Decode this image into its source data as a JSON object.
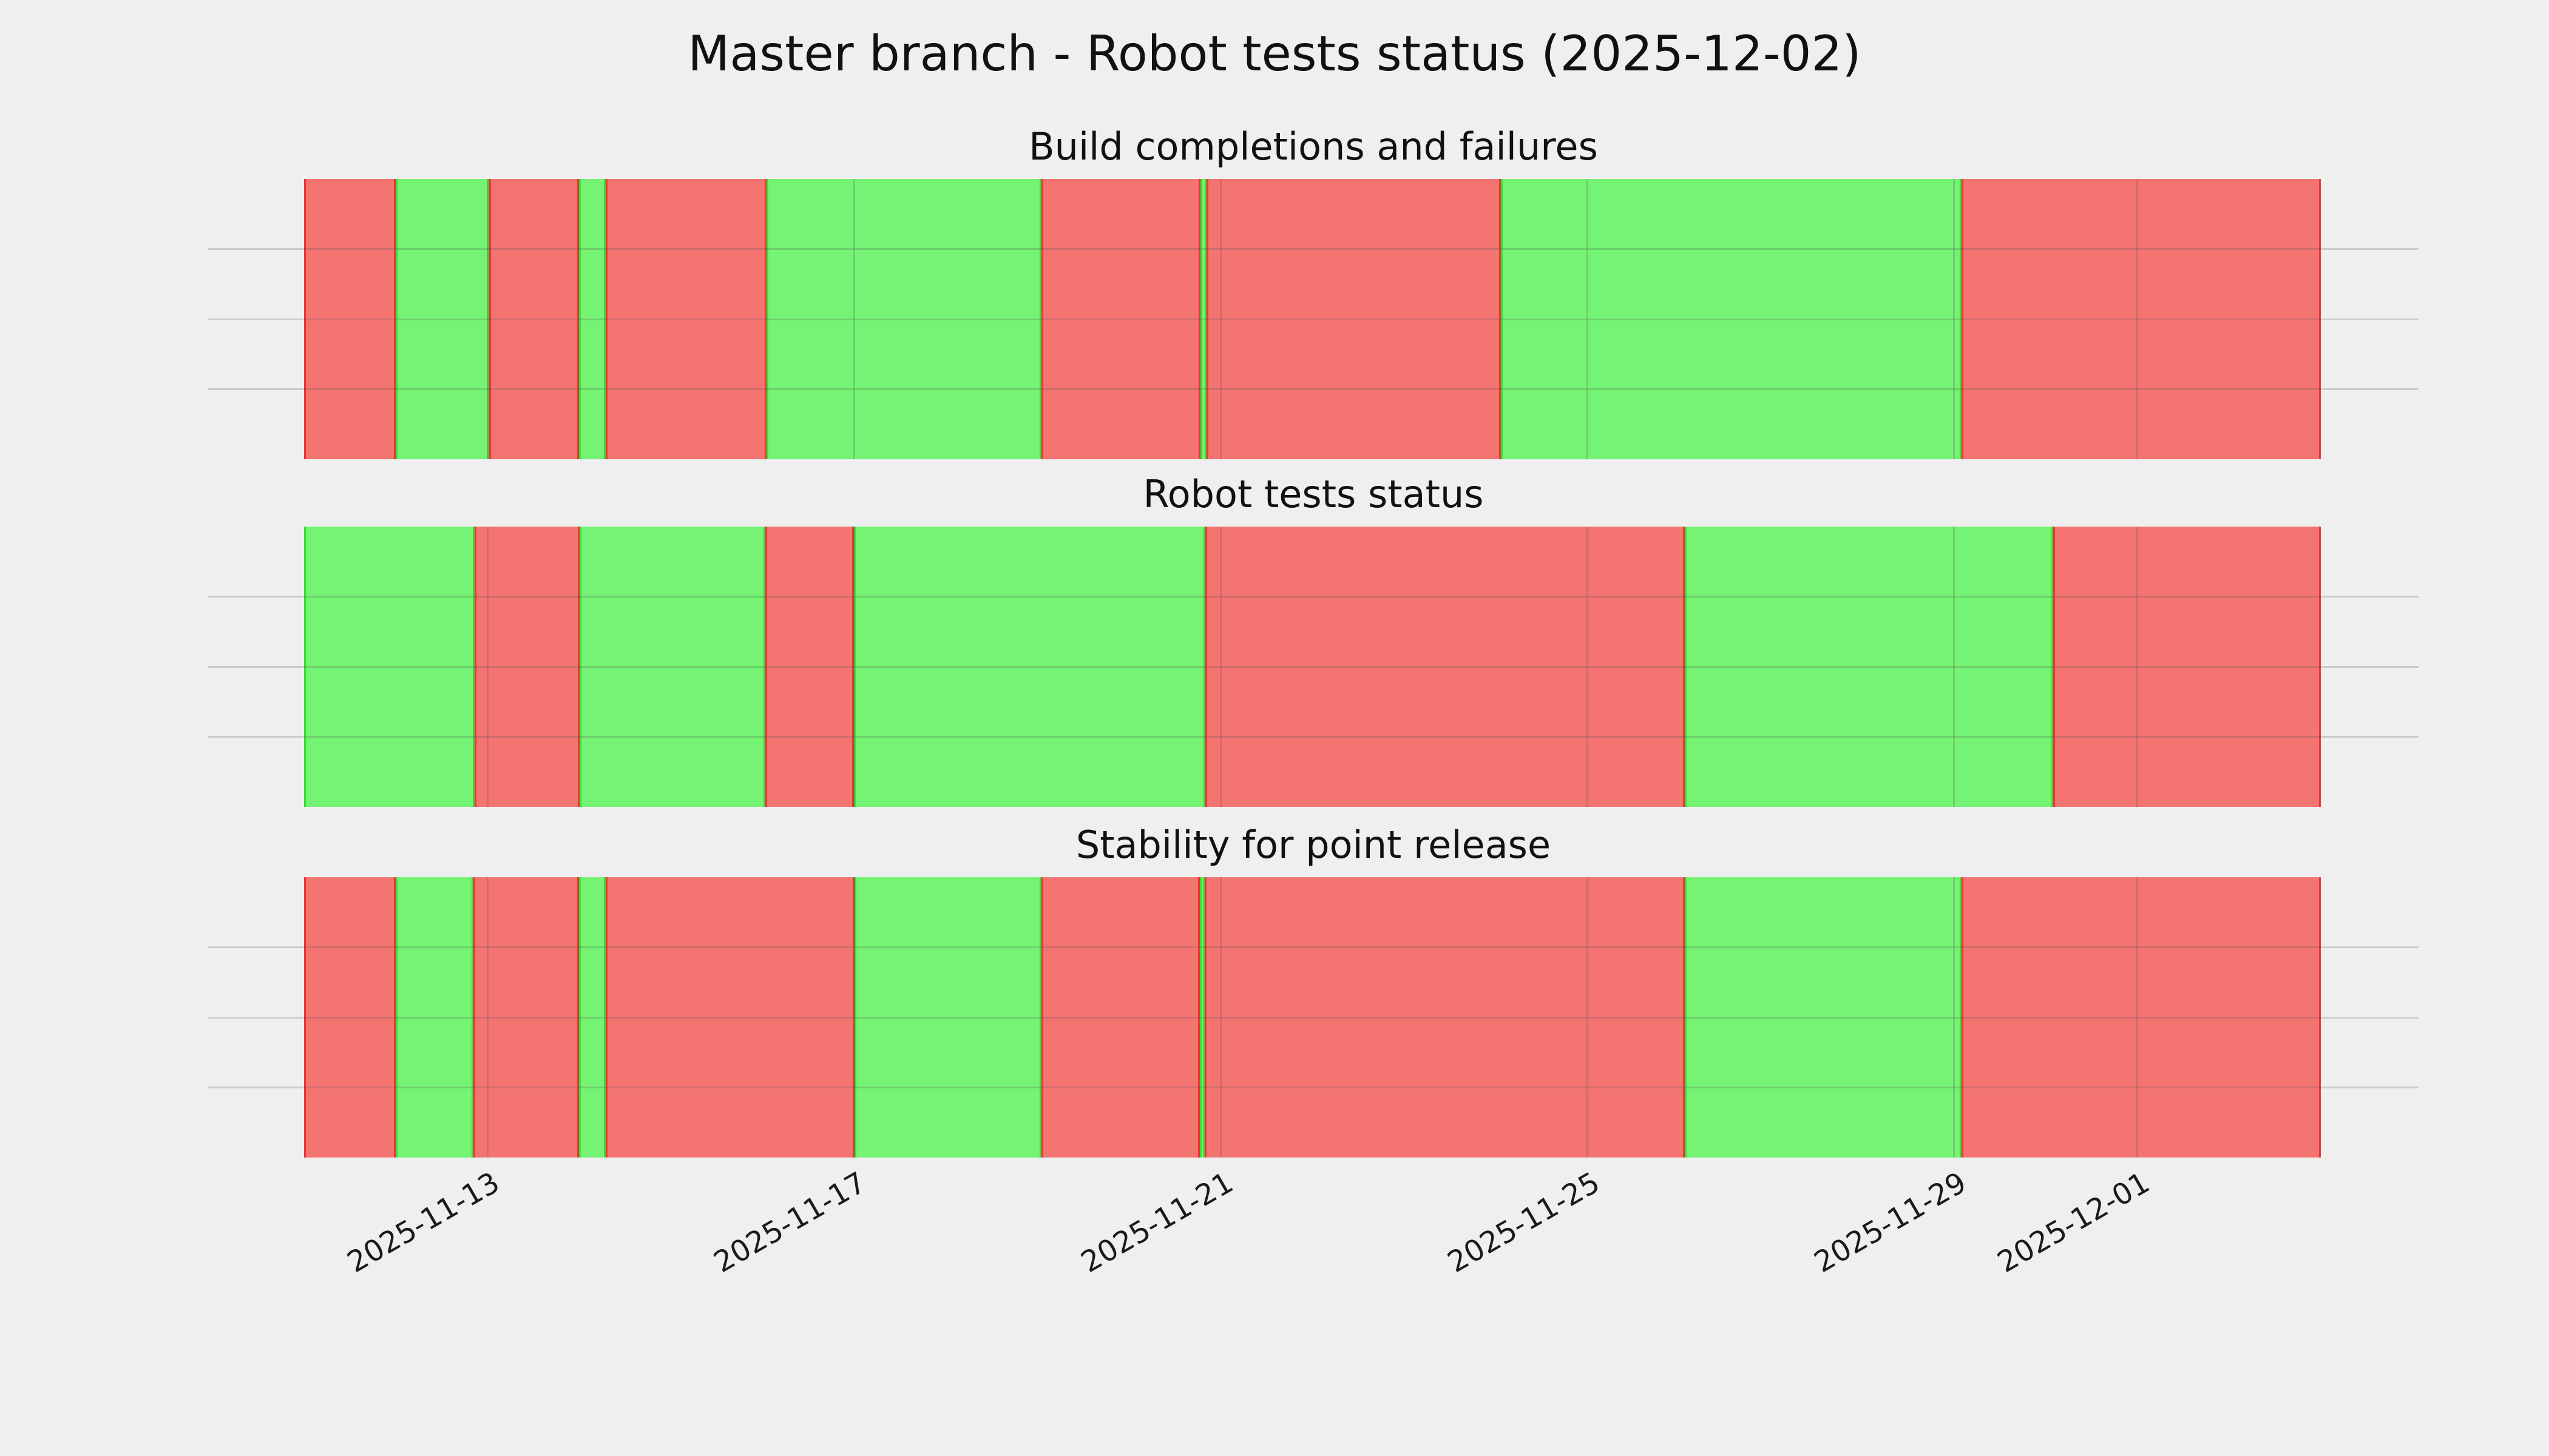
{
  "figure": {
    "title": "Master branch - Robot tests status (2025-12-02)",
    "background": "#efefef"
  },
  "chart_data": {
    "type": "status_timeline",
    "title": "Master branch - Robot tests status (2025-12-02)",
    "x_start": "2025-11-11T00:00:00",
    "x_end": "2025-12-03T00:00:00",
    "x_tick_labels": [
      "2025-11-13",
      "2025-11-17",
      "2025-11-21",
      "2025-11-25",
      "2025-11-29",
      "2025-12-01"
    ],
    "x_tick_dates": [
      "2025-11-13T00:00:00",
      "2025-11-17T00:00:00",
      "2025-11-21T00:00:00",
      "2025-11-25T00:00:00",
      "2025-11-29T00:00:00",
      "2025-12-01T00:00:00"
    ],
    "grid_on": true,
    "legend": null,
    "colors": {
      "pass": "#75f374",
      "fail": "#f47472",
      "pass_edge": "#35df35",
      "fail_edge": "#ee3333",
      "grid": "rgba(80,80,80,0.22)",
      "background": "#efefef"
    },
    "panels": [
      {
        "title": "Build completions and failures",
        "segments": [
          {
            "status": "fail",
            "start": "2025-11-11T00:00:00",
            "end": "2025-11-12T00:00:00"
          },
          {
            "status": "pass",
            "start": "2025-11-12T00:00:00",
            "end": "2025-11-13T00:30:00"
          },
          {
            "status": "fail",
            "start": "2025-11-13T00:30:00",
            "end": "2025-11-14T00:00:00"
          },
          {
            "status": "pass",
            "start": "2025-11-14T00:00:00",
            "end": "2025-11-14T07:00:00"
          },
          {
            "status": "fail",
            "start": "2025-11-14T07:00:00",
            "end": "2025-11-16T01:00:00"
          },
          {
            "status": "pass",
            "start": "2025-11-16T01:00:00",
            "end": "2025-11-19T01:00:00"
          },
          {
            "status": "fail",
            "start": "2025-11-19T01:00:00",
            "end": "2025-11-20T18:40:00"
          },
          {
            "status": "pass",
            "start": "2025-11-20T18:40:00",
            "end": "2025-11-20T20:15:00"
          },
          {
            "status": "fail",
            "start": "2025-11-20T20:15:00",
            "end": "2025-11-24T01:20:00"
          },
          {
            "status": "pass",
            "start": "2025-11-24T01:20:00",
            "end": "2025-11-29T02:00:00"
          },
          {
            "status": "fail",
            "start": "2025-11-29T02:00:00",
            "end": "2025-12-03T00:00:00"
          }
        ]
      },
      {
        "title": "Robot tests status",
        "segments": [
          {
            "status": "pass",
            "start": "2025-11-11T00:00:00",
            "end": "2025-11-12T20:40:00"
          },
          {
            "status": "fail",
            "start": "2025-11-12T20:40:00",
            "end": "2025-11-14T00:10:00"
          },
          {
            "status": "pass",
            "start": "2025-11-14T00:10:00",
            "end": "2025-11-16T00:45:00"
          },
          {
            "status": "fail",
            "start": "2025-11-16T00:45:00",
            "end": "2025-11-17T00:00:00"
          },
          {
            "status": "pass",
            "start": "2025-11-17T00:00:00",
            "end": "2025-11-20T19:55:00"
          },
          {
            "status": "fail",
            "start": "2025-11-20T19:55:00",
            "end": "2025-11-26T01:30:00"
          },
          {
            "status": "pass",
            "start": "2025-11-26T01:30:00",
            "end": "2025-11-30T02:00:00"
          },
          {
            "status": "fail",
            "start": "2025-11-30T02:00:00",
            "end": "2025-12-03T00:00:00"
          }
        ]
      },
      {
        "title": "Stability for point release",
        "segments": [
          {
            "status": "fail",
            "start": "2025-11-11T00:00:00",
            "end": "2025-11-12T00:00:00"
          },
          {
            "status": "pass",
            "start": "2025-11-12T00:00:00",
            "end": "2025-11-12T20:20:00"
          },
          {
            "status": "fail",
            "start": "2025-11-12T20:20:00",
            "end": "2025-11-14T00:00:00"
          },
          {
            "status": "pass",
            "start": "2025-11-14T00:00:00",
            "end": "2025-11-14T07:00:00"
          },
          {
            "status": "fail",
            "start": "2025-11-14T07:00:00",
            "end": "2025-11-17T00:10:00"
          },
          {
            "status": "pass",
            "start": "2025-11-17T00:10:00",
            "end": "2025-11-19T01:00:00"
          },
          {
            "status": "fail",
            "start": "2025-11-19T01:00:00",
            "end": "2025-11-20T18:30:00"
          },
          {
            "status": "pass",
            "start": "2025-11-20T18:30:00",
            "end": "2025-11-20T19:50:00"
          },
          {
            "status": "fail",
            "start": "2025-11-20T19:50:00",
            "end": "2025-11-26T01:30:00"
          },
          {
            "status": "pass",
            "start": "2025-11-26T01:30:00",
            "end": "2025-11-29T02:00:00"
          },
          {
            "status": "fail",
            "start": "2025-11-29T02:00:00",
            "end": "2025-12-03T00:00:00"
          }
        ]
      }
    ]
  }
}
